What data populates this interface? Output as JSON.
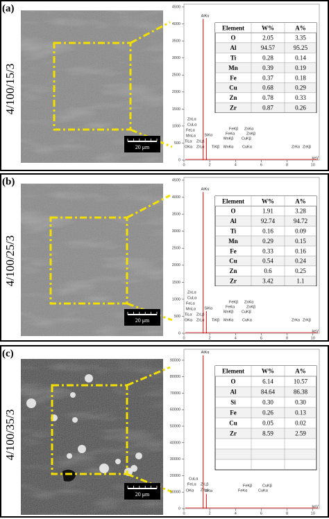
{
  "panels": [
    {
      "label": "(a)",
      "sample": "4/100/15/3",
      "scale_bar": "20 μm",
      "table": {
        "header": [
          "Element",
          "W%",
          "A%"
        ],
        "rows": [
          [
            "O",
            "2.05",
            "3.35"
          ],
          [
            "Al",
            "94.57",
            "95.25"
          ],
          [
            "Ti",
            "0.28",
            "0.14"
          ],
          [
            "Mn",
            "0.39",
            "0.19"
          ],
          [
            "Fe",
            "0.37",
            "0.18"
          ],
          [
            "Cu",
            "0.68",
            "0.29"
          ],
          [
            "Zn",
            "0.78",
            "0.33"
          ],
          [
            "Zr",
            "0.87",
            "0.26"
          ]
        ]
      },
      "spectrum": {
        "ylim": [
          0,
          4500
        ],
        "yticks": [
          0,
          500,
          1000,
          1500,
          2000,
          2500,
          3000,
          3500,
          4000,
          4500
        ],
        "xlim": [
          0,
          10.5
        ],
        "xticks": [
          0,
          2,
          4,
          6,
          8,
          10
        ],
        "x_unit": "keV",
        "peaks": [
          {
            "label": "AlKα",
            "energy": 1.49,
            "counts": 4150
          },
          {
            "label": "SiKα",
            "energy": 1.74,
            "counts": 650
          }
        ],
        "minor_labels": [
          "ZnLα",
          "CuLα",
          "FeLα",
          "MnLα",
          "TiLα",
          "OKα",
          "ZrLβ",
          "ZrLα",
          "FeKβ",
          "ZnKα",
          "FeKα",
          "ZnKβ",
          "MnKβ",
          "CuKβ",
          "TiKβ",
          "MnKα",
          "CuKα",
          "ZrKα",
          "ZrKβ"
        ]
      }
    },
    {
      "label": "(b)",
      "sample": "4/100/25/3",
      "scale_bar": "20 μm",
      "table": {
        "header": [
          "Element",
          "W%",
          "A%"
        ],
        "rows": [
          [
            "O",
            "1.91",
            "3.28"
          ],
          [
            "Al",
            "92.74",
            "94.72"
          ],
          [
            "Ti",
            "0.16",
            "0.09"
          ],
          [
            "Mn",
            "0.29",
            "0.15"
          ],
          [
            "Fe",
            "0.33",
            "0.16"
          ],
          [
            "Cu",
            "0.54",
            "0.24"
          ],
          [
            "Zn",
            "0.6",
            "0.25"
          ],
          [
            "Zr",
            "3.42",
            "1.1"
          ]
        ]
      },
      "spectrum": {
        "ylim": [
          0,
          4500
        ],
        "yticks": [
          0,
          500,
          1000,
          1500,
          2000,
          2500,
          3000,
          3500,
          4000,
          4500
        ],
        "xlim": [
          0,
          10.5
        ],
        "xticks": [
          0,
          2,
          4,
          6,
          8,
          10
        ],
        "x_unit": "keV",
        "peaks": [
          {
            "label": "AlKα",
            "energy": 1.49,
            "counts": 4150
          },
          {
            "label": "SiKα",
            "energy": 1.74,
            "counts": 650
          }
        ],
        "minor_labels": [
          "ZnLα",
          "CuLα",
          "FeLα",
          "MnLα",
          "TiLα",
          "OKα",
          "ZrLβ",
          "ZrLα",
          "FeKβ",
          "ZnKα",
          "FeKα",
          "ZnKβ",
          "MnKβ",
          "CuKβ",
          "TiKβ",
          "MnKα",
          "CuKα",
          "ZrKα",
          "ZrKβ"
        ]
      }
    },
    {
      "label": "(c)",
      "sample": "4/100/35/3",
      "scale_bar": "20 μm",
      "table": {
        "header": [
          "Element",
          "W%",
          "A%"
        ],
        "rows": [
          [
            "O",
            "6.14",
            "10.57"
          ],
          [
            "Al",
            "84.64",
            "86.38"
          ],
          [
            "Si",
            "0.30",
            "0.30"
          ],
          [
            "Fe",
            "0.26",
            "0.13"
          ],
          [
            "Cu",
            "0.05",
            "0.02"
          ],
          [
            "Zr",
            "8.59",
            "2.59"
          ]
        ]
      },
      "spectrum": {
        "ylim": [
          0,
          95000
        ],
        "yticks": [
          0,
          10000,
          20000,
          30000,
          40000,
          50000,
          60000,
          70000,
          80000,
          90000
        ],
        "xlim": [
          0,
          10.5
        ],
        "xticks": [
          0,
          2,
          4,
          6,
          8,
          10
        ],
        "x_unit": "keV",
        "peaks": [
          {
            "label": "AlKα",
            "energy": 1.49,
            "counts": 93000
          },
          {
            "label": "SiKα",
            "energy": 1.74,
            "counts": 9000
          }
        ],
        "minor_labels": [
          "CuLα",
          "FeLα",
          "OKα",
          "ZrLβ",
          "ZrLα",
          "FeKβ",
          "FeKα",
          "CuKβ",
          "CuKα"
        ]
      }
    }
  ]
}
